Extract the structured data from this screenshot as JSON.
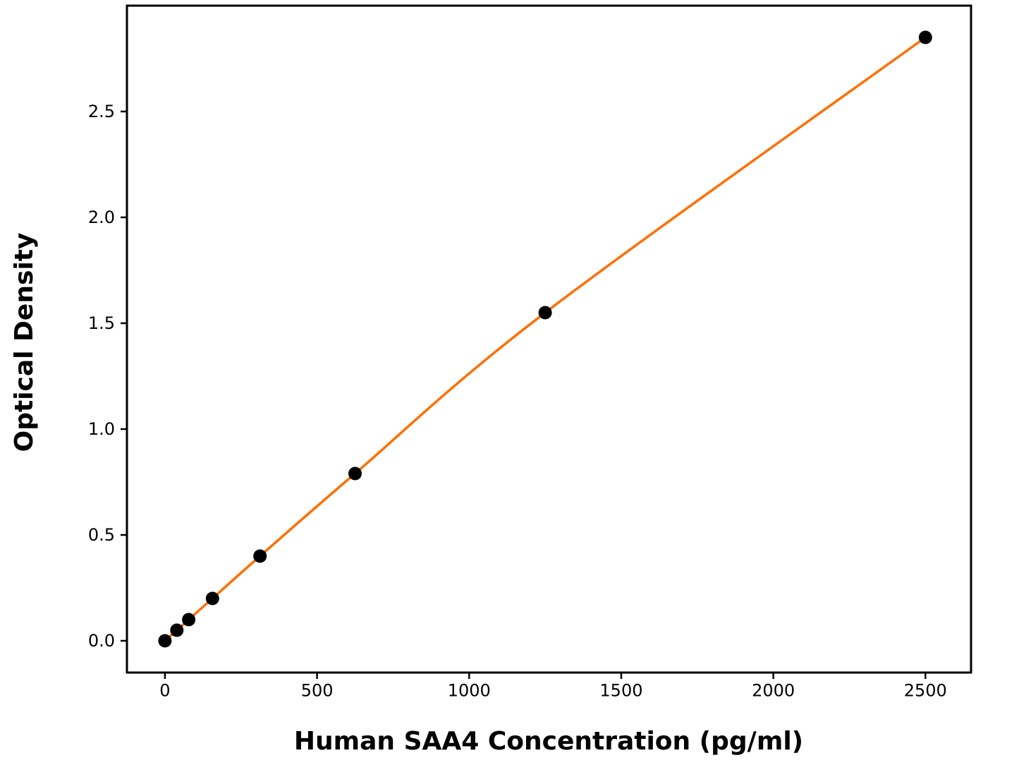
{
  "chart_data": {
    "type": "line",
    "title": "",
    "xlabel": "Human SAA4 Concentration (pg/ml)",
    "ylabel": "Optical Density",
    "x": [
      0,
      39.06,
      78.13,
      156.25,
      312.5,
      625,
      1250,
      2500
    ],
    "y": [
      0.0,
      0.05,
      0.1,
      0.2,
      0.4,
      0.79,
      1.55,
      2.85
    ],
    "xlim": [
      -125,
      2650
    ],
    "ylim": [
      -0.15,
      3.0
    ],
    "xticks": [
      "0",
      "500",
      "1000",
      "1500",
      "2000",
      "2500"
    ],
    "yticks": [
      "0.0",
      "0.5",
      "1.0",
      "1.5",
      "2.0",
      "2.5"
    ],
    "grid": false,
    "legend": "none",
    "marker": "circle",
    "line_color": "#FF6F00",
    "marker_color": "#000000",
    "axis_color": "#000000",
    "background_color": "#FFFFFF"
  }
}
